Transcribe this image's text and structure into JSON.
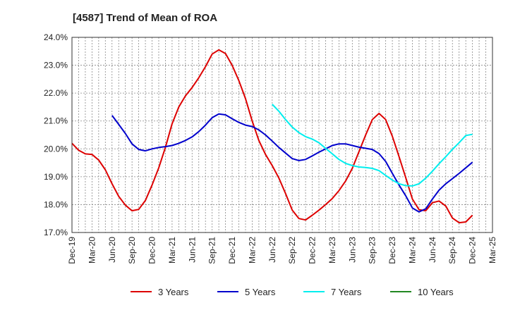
{
  "chart_data": {
    "type": "line",
    "title": "[4587]  Trend of Mean of ROA",
    "xlabel": "",
    "ylabel": "",
    "ylim": [
      17.0,
      24.0
    ],
    "y_ticks": [
      17.0,
      18.0,
      19.0,
      20.0,
      21.0,
      22.0,
      23.0,
      24.0
    ],
    "y_tick_labels": [
      "17.0%",
      "18.0%",
      "19.0%",
      "20.0%",
      "21.0%",
      "22.0%",
      "23.0%",
      "24.0%"
    ],
    "x_tick_labels": [
      "Dec-19",
      "Mar-20",
      "Jun-20",
      "Sep-20",
      "Dec-20",
      "Mar-21",
      "Jun-21",
      "Sep-21",
      "Dec-21",
      "Mar-22",
      "Jun-22",
      "Sep-22",
      "Dec-22",
      "Mar-23",
      "Jun-23",
      "Sep-23",
      "Dec-23",
      "Mar-24",
      "Jun-24",
      "Sep-24",
      "Dec-24",
      "Mar-25"
    ],
    "x_range_months": [
      0,
      63
    ],
    "grid": true,
    "legend_position": "bottom",
    "series": [
      {
        "name": "3 Years",
        "color": "#dd0000",
        "start_month": 0,
        "values": [
          20.2,
          19.95,
          19.82,
          19.8,
          19.6,
          19.25,
          18.75,
          18.3,
          17.98,
          17.78,
          17.83,
          18.15,
          18.7,
          19.32,
          20.05,
          20.9,
          21.5,
          21.9,
          22.2,
          22.55,
          22.95,
          23.4,
          23.55,
          23.42,
          23.0,
          22.45,
          21.8,
          21.0,
          20.3,
          19.8,
          19.4,
          18.95,
          18.4,
          17.8,
          17.5,
          17.45,
          17.62,
          17.8,
          18.0,
          18.22,
          18.5,
          18.85,
          19.3,
          19.9,
          20.5,
          21.05,
          21.27,
          21.05,
          20.45,
          19.72,
          18.97,
          18.2,
          17.82,
          17.78,
          18.07,
          18.13,
          17.95,
          17.52,
          17.35,
          17.38,
          17.62
        ]
      },
      {
        "name": "5 Years",
        "color": "#0000cc",
        "start_month": 6,
        "values": [
          21.2,
          20.88,
          20.55,
          20.18,
          19.98,
          19.93,
          20.0,
          20.05,
          20.08,
          20.12,
          20.2,
          20.3,
          20.43,
          20.62,
          20.85,
          21.12,
          21.25,
          21.22,
          21.08,
          20.95,
          20.85,
          20.8,
          20.68,
          20.5,
          20.28,
          20.05,
          19.85,
          19.65,
          19.58,
          19.62,
          19.75,
          19.88,
          20.0,
          20.12,
          20.18,
          20.18,
          20.12,
          20.06,
          20.02,
          19.98,
          19.83,
          19.55,
          19.12,
          18.7,
          18.32,
          17.88,
          17.74,
          17.85,
          18.2,
          18.52,
          18.75,
          18.93,
          19.12,
          19.32,
          19.52
        ]
      },
      {
        "name": "7 Years",
        "color": "#00eeee",
        "start_month": 30,
        "values": [
          21.6,
          21.35,
          21.05,
          20.78,
          20.58,
          20.44,
          20.35,
          20.22,
          20.02,
          19.82,
          19.62,
          19.48,
          19.4,
          19.35,
          19.33,
          19.3,
          19.22,
          19.05,
          18.88,
          18.75,
          18.68,
          18.67,
          18.75,
          18.95,
          19.2,
          19.47,
          19.72,
          19.98,
          20.22,
          20.48,
          20.52
        ]
      },
      {
        "name": "10 Years",
        "color": "#228822",
        "start_month": 0,
        "values": []
      }
    ]
  }
}
